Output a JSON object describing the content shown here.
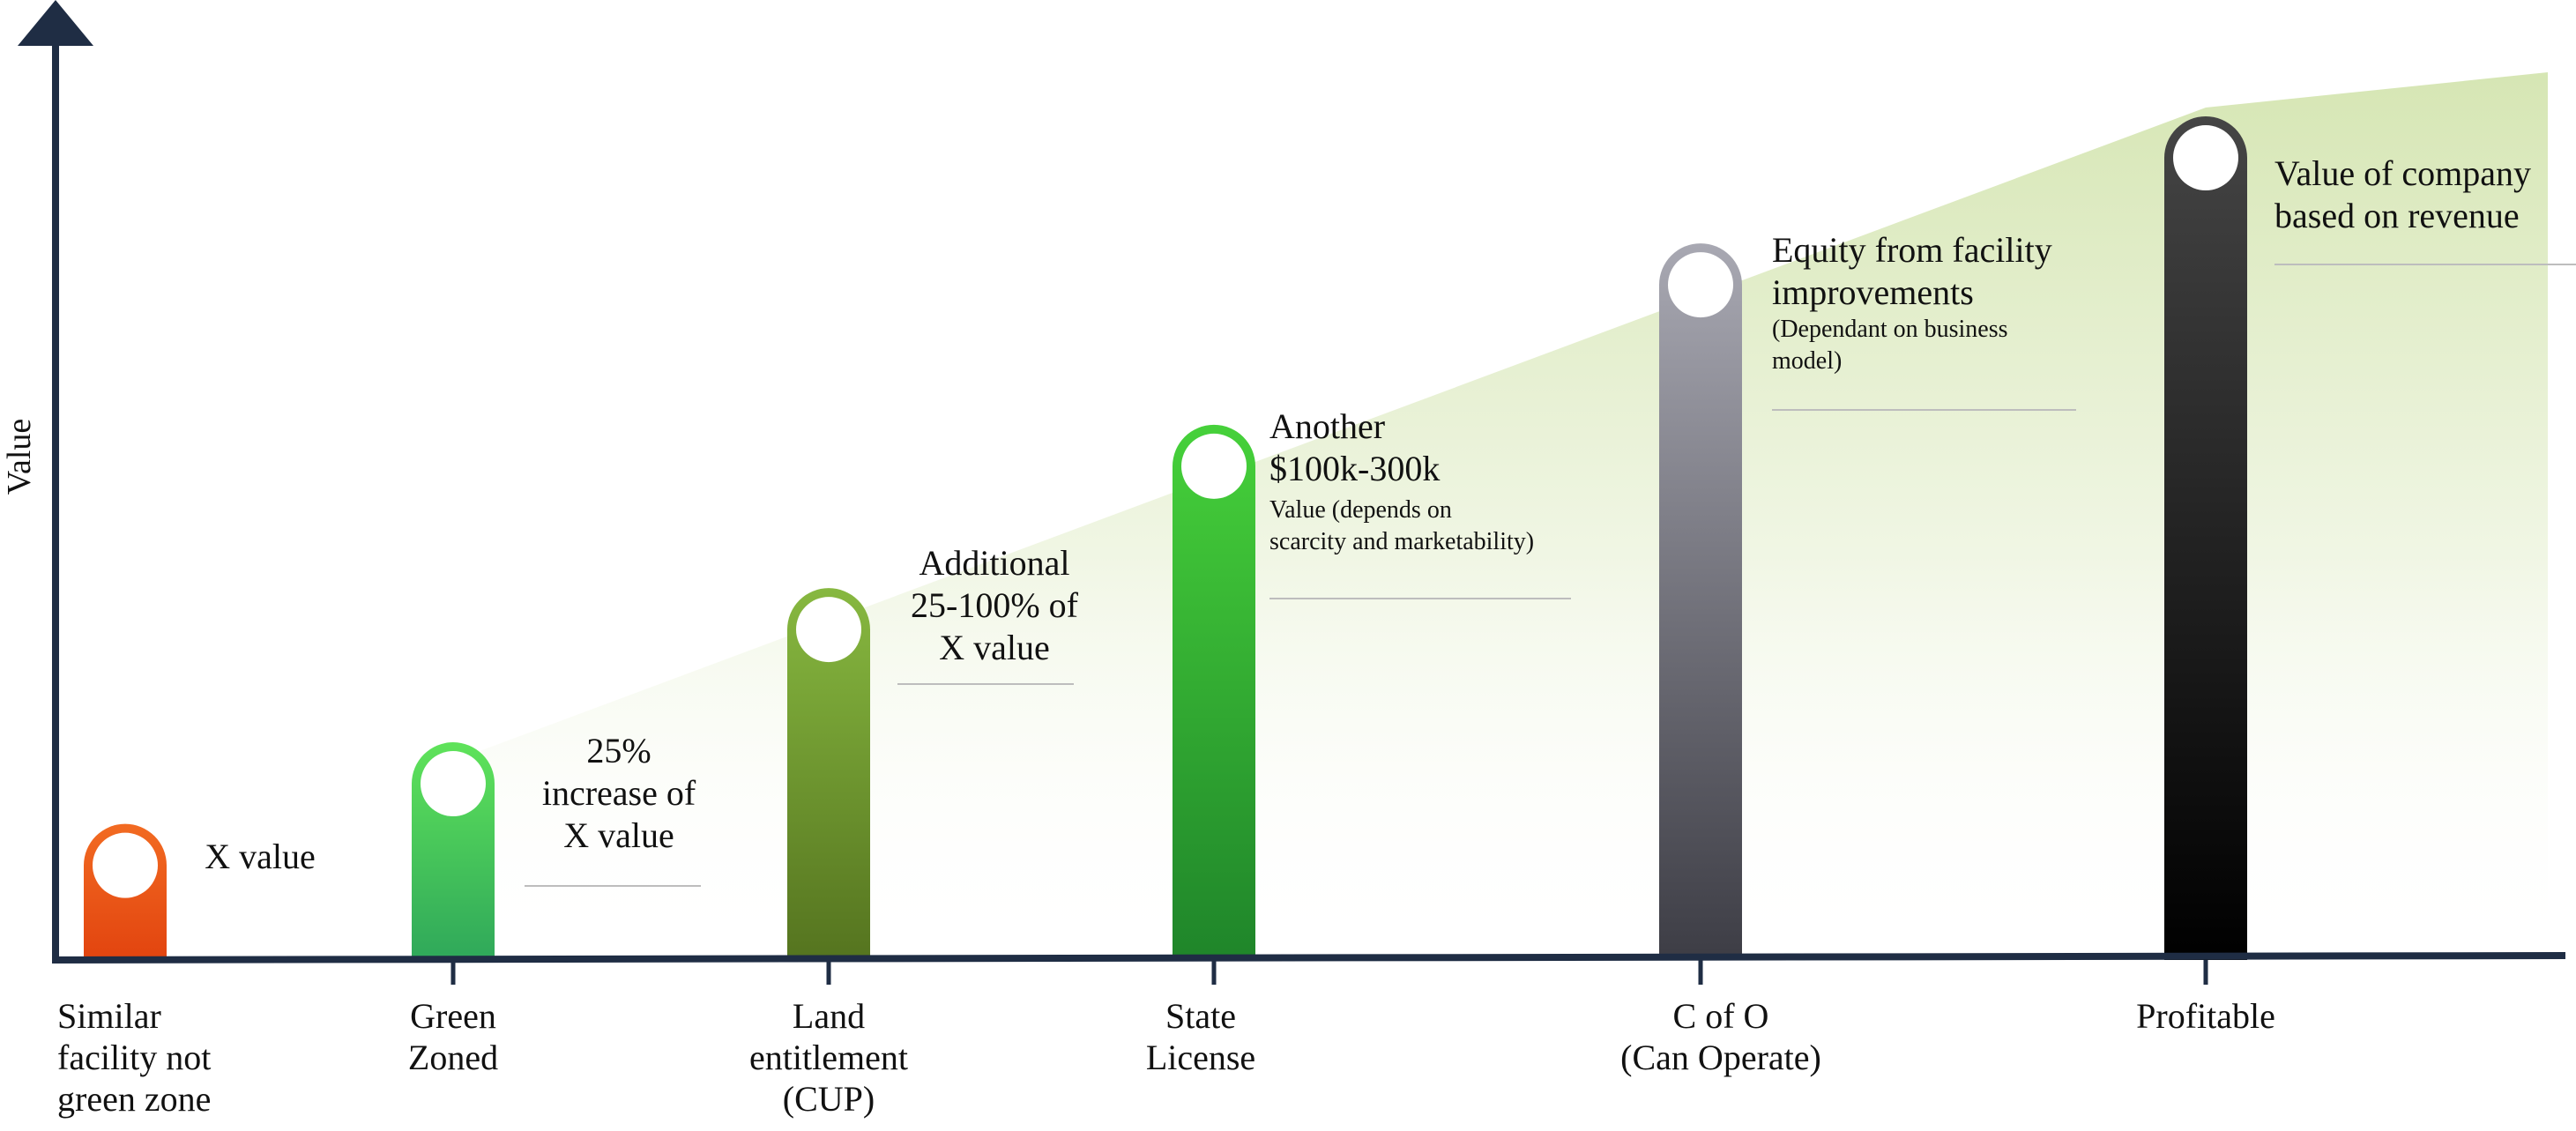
{
  "chart_data": {
    "type": "bar",
    "ylabel": "Value",
    "categories": [
      [
        "Similar",
        "facility not",
        "green zone"
      ],
      [
        "Green",
        "Zoned"
      ],
      [
        "Land",
        "entitlement",
        "(CUP)"
      ],
      [
        "State",
        "License"
      ],
      [
        "C of O",
        "(Can Operate)"
      ],
      [
        "Profitable"
      ]
    ],
    "values": [
      15,
      24,
      41,
      59,
      79,
      93
    ],
    "ylim": [
      0,
      100
    ],
    "bar_colors": [
      [
        "#f26b22",
        "#e2440f"
      ],
      [
        "#5fe35a",
        "#2fa85a"
      ],
      [
        "#87b840",
        "#55741f"
      ],
      [
        "#46d13a",
        "#1f852a"
      ],
      [
        "#a8a8b2",
        "#3d3d45"
      ],
      [
        "#454545",
        "#000000"
      ]
    ],
    "annotations": [
      {
        "bar": 0,
        "lines": [
          "X value"
        ],
        "notes": [],
        "underline": false
      },
      {
        "bar": 1,
        "lines": [
          "25%",
          "increase of",
          "X value"
        ],
        "notes": [],
        "underline": true
      },
      {
        "bar": 2,
        "lines": [
          "Additional",
          "25-100% of",
          "X value"
        ],
        "notes": [],
        "underline": true
      },
      {
        "bar": 3,
        "lines": [
          "Another",
          "$100k-300k"
        ],
        "notes": [
          "Value (depends on",
          "scarcity and marketability)"
        ],
        "underline": true
      },
      {
        "bar": 4,
        "lines": [
          "Equity from facility",
          "improvements"
        ],
        "notes": [
          "(Dependant on business",
          "model)"
        ],
        "underline": true
      },
      {
        "bar": 5,
        "lines": [
          "Value of company",
          "based on revenue"
        ],
        "notes": [],
        "underline": true
      }
    ],
    "grid": false,
    "legend": "none",
    "area_color": "#d6e6b4",
    "axis_color": "#1f2d44"
  }
}
